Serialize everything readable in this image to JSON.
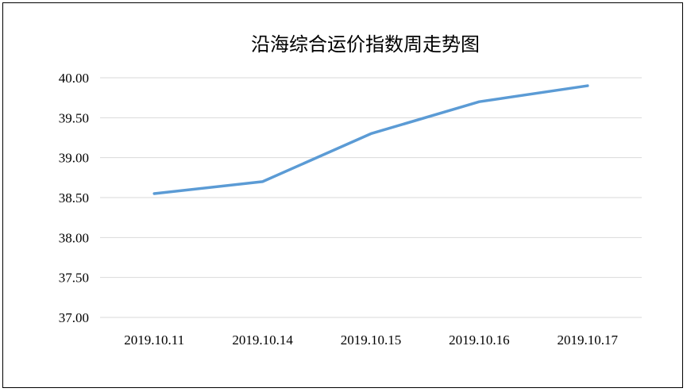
{
  "chart_data": {
    "type": "line",
    "title": "沿海综合运价指数周走势图",
    "xlabel": "",
    "ylabel": "",
    "categories": [
      "2019.10.11",
      "2019.10.14",
      "2019.10.15",
      "2019.10.16",
      "2019.10.17"
    ],
    "series": [
      {
        "values": [
          38.55,
          38.7,
          39.3,
          39.7,
          39.9
        ],
        "color": "#5b9bd5"
      }
    ],
    "ylim": [
      37.0,
      40.0
    ],
    "yticks": [
      "37.00",
      "37.50",
      "38.00",
      "38.50",
      "39.00",
      "39.50",
      "40.00"
    ],
    "grid": true,
    "legend": "none"
  }
}
